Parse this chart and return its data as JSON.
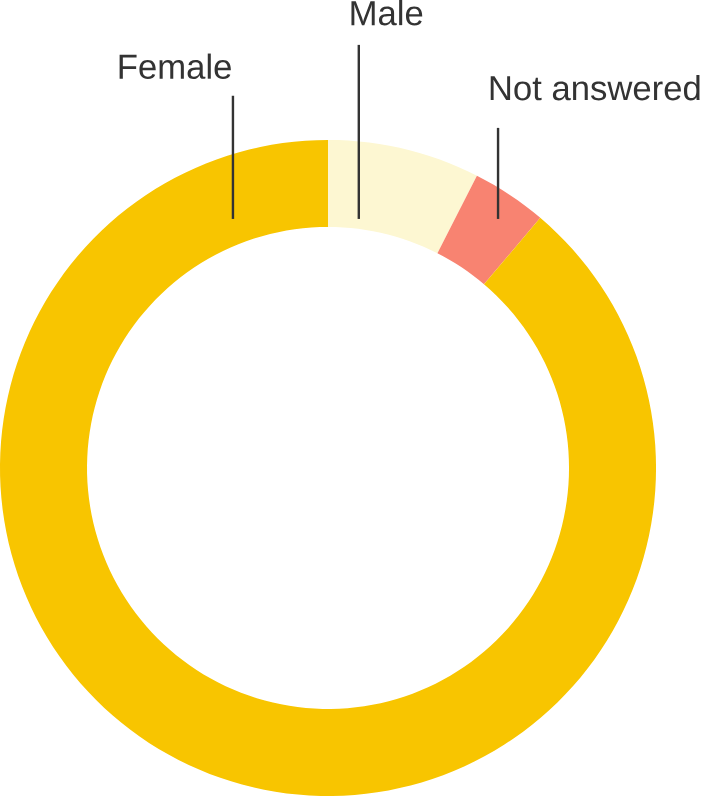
{
  "chart_data": {
    "type": "donut",
    "categories": [
      "Male",
      "Not answered",
      "Female"
    ],
    "values": [
      7.5,
      3.7,
      88.8
    ],
    "colors": [
      "#fdf7d2",
      "#f88371",
      "#f8c500"
    ]
  }
}
